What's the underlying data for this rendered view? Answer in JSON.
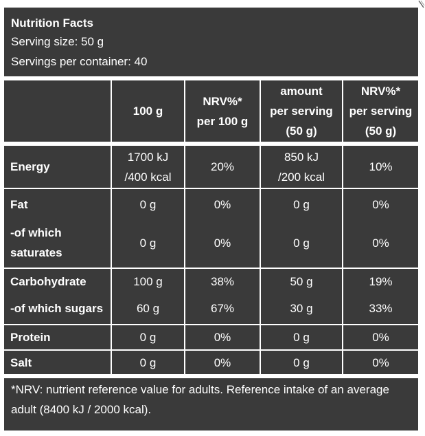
{
  "header": {
    "title": "Nutrition Facts",
    "serving_size": "Serving size: 50 g",
    "servings_per_container": "Servings per container: 40"
  },
  "columns": {
    "per_100g": "100 g",
    "nrv_100g_line1": "NRV%*",
    "nrv_100g_line2": "per 100 g",
    "serv_line1": "amount",
    "serv_line2": "per serving",
    "serv_line3": "(50 g)",
    "nrv_serv_line1": "NRV%*",
    "nrv_serv_line2": "per serving",
    "nrv_serv_line3": "(50 g)"
  },
  "rows": {
    "energy": {
      "label": "Energy",
      "per100_line1": "1700 kJ",
      "per100_line2": "/400 kcal",
      "nrv100": "20%",
      "serv_line1": "850 kJ",
      "serv_line2": "/200 kcal",
      "nrvserv": "10%"
    },
    "fat": {
      "label": "Fat",
      "per100": "0 g",
      "nrv100": "0%",
      "serv": "0 g",
      "nrvserv": "0%"
    },
    "saturates": {
      "label_line1": "-of which",
      "label_line2": "saturates",
      "per100": "0 g",
      "nrv100": "0%",
      "serv": "0 g",
      "nrvserv": "0%"
    },
    "carbohydrate": {
      "label": "Carbohydrate",
      "per100": "100 g",
      "nrv100": "38%",
      "serv": "50 g",
      "nrvserv": "19%"
    },
    "sugars": {
      "label": "-of which sugars",
      "per100": "60 g",
      "nrv100": "67%",
      "serv": "30 g",
      "nrvserv": "33%"
    },
    "protein": {
      "label": "Protein",
      "per100": "0 g",
      "nrv100": "0%",
      "serv": "0 g",
      "nrvserv": "0%"
    },
    "salt": {
      "label": "Salt",
      "per100": "0 g",
      "nrv100": "0%",
      "serv": "0 g",
      "nrvserv": "0%"
    }
  },
  "footnote": "*NRV: nutrient reference value for adults. Reference intake of an average adult (8400 kJ / 2000 kcal)."
}
